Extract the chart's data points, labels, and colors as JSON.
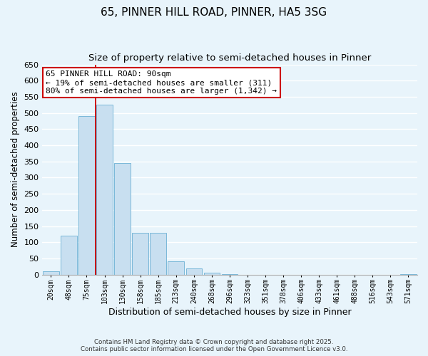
{
  "title": "65, PINNER HILL ROAD, PINNER, HA5 3SG",
  "subtitle": "Size of property relative to semi-detached houses in Pinner",
  "xlabel": "Distribution of semi-detached houses by size in Pinner",
  "ylabel": "Number of semi-detached properties",
  "categories": [
    "20sqm",
    "48sqm",
    "75sqm",
    "103sqm",
    "130sqm",
    "158sqm",
    "185sqm",
    "213sqm",
    "240sqm",
    "268sqm",
    "296sqm",
    "323sqm",
    "351sqm",
    "378sqm",
    "406sqm",
    "433sqm",
    "461sqm",
    "488sqm",
    "516sqm",
    "543sqm",
    "571sqm"
  ],
  "values": [
    10,
    120,
    490,
    525,
    345,
    130,
    130,
    40,
    20,
    5,
    2,
    0,
    0,
    0,
    0,
    0,
    0,
    0,
    0,
    0,
    2
  ],
  "bar_color": "#c8dff0",
  "bar_edge_color": "#7ab8d9",
  "vline_color": "#cc0000",
  "vline_x_index": 2.5,
  "ylim": [
    0,
    650
  ],
  "yticks": [
    0,
    50,
    100,
    150,
    200,
    250,
    300,
    350,
    400,
    450,
    500,
    550,
    600,
    650
  ],
  "annotation_title": "65 PINNER HILL ROAD: 90sqm",
  "annotation_line1": "← 19% of semi-detached houses are smaller (311)",
  "annotation_line2": "80% of semi-detached houses are larger (1,342) →",
  "annotation_box_color": "#ffffff",
  "annotation_box_edge": "#cc0000",
  "footer1": "Contains HM Land Registry data © Crown copyright and database right 2025.",
  "footer2": "Contains public sector information licensed under the Open Government Licence v3.0.",
  "background_color": "#e8f4fb",
  "grid_color": "#ffffff",
  "title_fontsize": 11,
  "subtitle_fontsize": 9.5
}
